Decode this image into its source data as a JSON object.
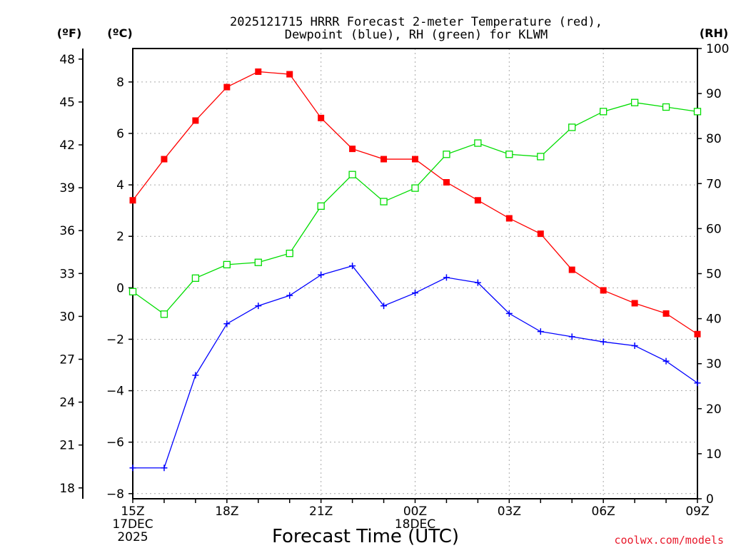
{
  "chart_data": {
    "type": "line",
    "title": "2025121715 HRRR Forecast 2-meter Temperature (red),",
    "subtitle": "Dewpoint (blue), RH (green) for KLWM",
    "xlabel": "Forecast Time (UTC)",
    "watermark": "coolwx.com/models",
    "x": [
      "15Z",
      "16Z",
      "17Z",
      "18Z",
      "19Z",
      "20Z",
      "21Z",
      "22Z",
      "23Z",
      "00Z",
      "01Z",
      "02Z",
      "03Z",
      "04Z",
      "05Z",
      "06Z",
      "07Z",
      "08Z",
      "09Z"
    ],
    "x_tick_labels": [
      {
        "index": 0,
        "lines": [
          "15Z",
          "17DEC",
          "2025"
        ]
      },
      {
        "index": 3,
        "lines": [
          "18Z"
        ]
      },
      {
        "index": 6,
        "lines": [
          "21Z"
        ]
      },
      {
        "index": 9,
        "lines": [
          "00Z",
          "18DEC"
        ]
      },
      {
        "index": 12,
        "lines": [
          "03Z"
        ]
      },
      {
        "index": 15,
        "lines": [
          "06Z"
        ]
      },
      {
        "index": 18,
        "lines": [
          "09Z"
        ]
      }
    ],
    "axes": {
      "left_outer": {
        "label": "(ºF)",
        "ticks": [
          18,
          21,
          24,
          27,
          30,
          33,
          36,
          39,
          42,
          45,
          48
        ]
      },
      "left_inner": {
        "label": "(ºC)",
        "ticks": [
          -8,
          -6,
          -4,
          -2,
          0,
          2,
          4,
          6,
          8
        ],
        "ylim": [
          -8.2,
          9.3
        ]
      },
      "right": {
        "label": "(RH)",
        "ticks": [
          0,
          10,
          20,
          30,
          40,
          50,
          60,
          70,
          80,
          90,
          100
        ],
        "ylim": [
          0,
          100
        ]
      }
    },
    "grid": true,
    "series": [
      {
        "name": "Temperature",
        "color": "#ff0000",
        "marker": "filled-square",
        "axis": "celsius",
        "values": [
          3.4,
          5.0,
          6.5,
          7.8,
          8.4,
          8.3,
          6.6,
          5.4,
          5.0,
          5.0,
          4.1,
          3.4,
          2.7,
          2.1,
          0.7,
          -0.1,
          -0.6,
          -1.0,
          -1.8
        ]
      },
      {
        "name": "Dewpoint",
        "color": "#0000ff",
        "marker": "plus",
        "axis": "celsius",
        "values": [
          -7.0,
          -7.0,
          -3.4,
          -1.4,
          -0.7,
          -0.3,
          0.5,
          0.85,
          -0.7,
          -0.2,
          0.4,
          0.2,
          -1.0,
          -1.7,
          -1.9,
          -2.1,
          -2.25,
          -2.85,
          -3.7
        ]
      },
      {
        "name": "RH",
        "color": "#00dd00",
        "marker": "open-square",
        "axis": "rh",
        "values": [
          46,
          41,
          49,
          52,
          52.5,
          54.5,
          65,
          72,
          66,
          69,
          76.5,
          79,
          76.5,
          76,
          82.5,
          86,
          88,
          87,
          86
        ]
      }
    ]
  }
}
